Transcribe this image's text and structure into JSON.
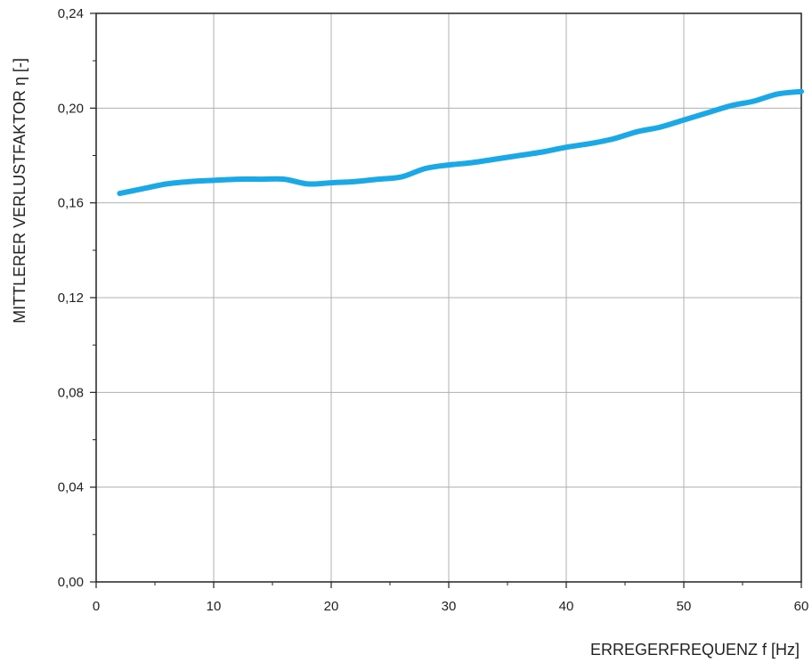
{
  "chart_data": {
    "type": "line",
    "xlabel": "ERREGERFREQUENZ f [Hz]",
    "ylabel": "MITTLERER VERLUSTFAKTOR η [-]",
    "xlim": [
      0,
      60
    ],
    "ylim": [
      0,
      0.24
    ],
    "x_ticks": [
      0,
      10,
      20,
      30,
      40,
      50,
      60
    ],
    "x_tick_labels": [
      "0",
      "10",
      "20",
      "30",
      "40",
      "50",
      "60"
    ],
    "y_ticks": [
      0,
      0.04,
      0.08,
      0.12,
      0.16,
      0.2,
      0.24
    ],
    "y_tick_labels": [
      "0,00",
      "0,04",
      "0,08",
      "0,12",
      "0,16",
      "0,20",
      "0,24"
    ],
    "grid": true,
    "colors": {
      "series": "#1aa9e6",
      "grid": "#b0b0b0",
      "axis": "#222222"
    },
    "series": [
      {
        "x": [
          2,
          4,
          6,
          8,
          10,
          12,
          14,
          16,
          18,
          20,
          22,
          24,
          26,
          28,
          30,
          32,
          34,
          36,
          38,
          40,
          42,
          44,
          46,
          48,
          50,
          52,
          54,
          56,
          58,
          60
        ],
        "values": [
          0.164,
          0.166,
          0.168,
          0.169,
          0.1695,
          0.17,
          0.17,
          0.17,
          0.168,
          0.1685,
          0.169,
          0.17,
          0.171,
          0.1745,
          0.176,
          0.177,
          0.1785,
          0.18,
          0.1815,
          0.1835,
          0.185,
          0.187,
          0.19,
          0.192,
          0.195,
          0.198,
          0.201,
          0.203,
          0.206,
          0.207
        ]
      }
    ]
  }
}
